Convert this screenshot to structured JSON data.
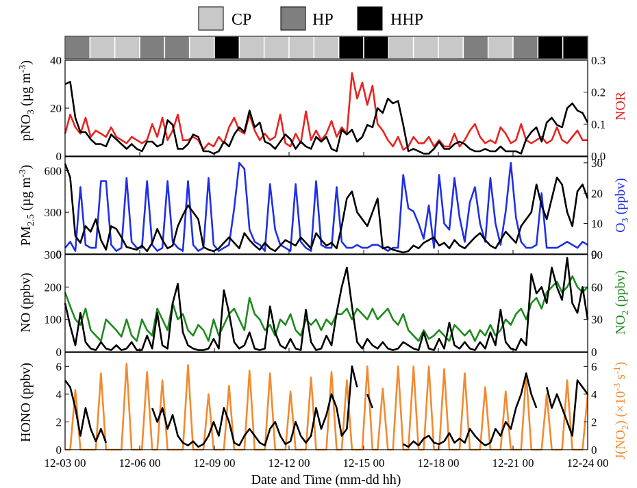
{
  "chart_data": {
    "type": "line",
    "x_axis": {
      "label": "Date and Time (mm-dd hh)",
      "ticks": [
        "12-03 00",
        "12-06 00",
        "12-09 00",
        "12-12 00",
        "12-15 00",
        "12-18 00",
        "12-21 00",
        "12-24 00"
      ],
      "range_days": [
        0,
        21
      ]
    },
    "legend": {
      "items": [
        {
          "label": "CP",
          "color": "#c8c8c8"
        },
        {
          "label": "HP",
          "color": "#7f7f7f"
        },
        {
          "label": "HHP",
          "color": "#000000"
        }
      ],
      "placement": "top"
    },
    "pollution_bar": [
      "HP",
      "CP",
      "CP",
      "HP",
      "HP",
      "CP",
      "HHP",
      "CP",
      "CP",
      "CP",
      "CP",
      "HHP",
      "HHP",
      "CP",
      "CP",
      "CP",
      "HP",
      "CP",
      "HP",
      "HHP",
      "HHP"
    ],
    "panels": [
      {
        "left_label": "pNO3 (µg m-3)",
        "left_ylim": [
          0,
          40
        ],
        "left_ticks": [
          "0",
          "20",
          "40"
        ],
        "right_label": "NOR",
        "right_ylim": [
          0,
          0.3
        ],
        "right_ticks": [
          "0.0",
          "0.1",
          "0.2",
          "0.3"
        ],
        "left_color": "#000000",
        "right_color": "#e8231f",
        "series": [
          {
            "axis": "left",
            "color": "#000000",
            "values": [
              30,
              31,
              16,
              10,
              10,
              7,
              5,
              5,
              4,
              9,
              7,
              5,
              3,
              5,
              3,
              2,
              6,
              6,
              4,
              5,
              15,
              13,
              3,
              3,
              5,
              9,
              8,
              2,
              2,
              1,
              2,
              6,
              4,
              9,
              12,
              10,
              19,
              12,
              14,
              6,
              5,
              3,
              6,
              9,
              7,
              3,
              6,
              4,
              3,
              8,
              6,
              8,
              3,
              2,
              11,
              9,
              11,
              6,
              8,
              13,
              12,
              20,
              18,
              24,
              22,
              23,
              13,
              2,
              3,
              2,
              1,
              1,
              3,
              6,
              3,
              3,
              5,
              6,
              5,
              3,
              2,
              2,
              3,
              2,
              2,
              4,
              2,
              2,
              2,
              1,
              7,
              10,
              12,
              6,
              14,
              16,
              13,
              12,
              20,
              22,
              19,
              18,
              14
            ]
          },
          {
            "axis": "right",
            "color": "#e8231f",
            "values": [
              0.07,
              0.13,
              0.09,
              0.07,
              0.12,
              0.06,
              0.08,
              0.07,
              0.06,
              0.09,
              0.06,
              0.05,
              0.04,
              0.06,
              0.05,
              0.04,
              0.05,
              0.1,
              0.06,
              0.12,
              0.05,
              0.08,
              0.13,
              0.05,
              0.05,
              0.06,
              0.05,
              0.02,
              0.04,
              0.03,
              0.06,
              0.04,
              0.09,
              0.12,
              0.08,
              0.07,
              0.13,
              0.08,
              0.05,
              0.07,
              0.05,
              0.06,
              0.13,
              0.04,
              0.03,
              0.07,
              0.04,
              0.14,
              0.05,
              0.08,
              0.05,
              0.07,
              0.11,
              0.06,
              0.09,
              0.07,
              0.26,
              0.18,
              0.23,
              0.16,
              0.22,
              0.1,
              0.08,
              0.05,
              0.03,
              0.06,
              0.02,
              0.03,
              0.06,
              0.04,
              0.04,
              0.06,
              0.03,
              0.05,
              0.03,
              0.03,
              0.07,
              0.03,
              0.05,
              0.08,
              0.1,
              0.06,
              0.04,
              0.05,
              0.04,
              0.09,
              0.07,
              0.04,
              0.05,
              0.1,
              0.05,
              0.04,
              0.05,
              0.06,
              0.04,
              0.05,
              0.09,
              0.05,
              0.04,
              0.06,
              0.08,
              0.05,
              0.05
            ]
          }
        ]
      },
      {
        "left_label": "PM2.5 (µg m-3)",
        "left_ylim": [
          0,
          700
        ],
        "left_ticks": [
          "0",
          "300",
          "600"
        ],
        "right_label": "O3 (ppbv)",
        "right_ylim": [
          0,
          32
        ],
        "right_ticks": [
          "0",
          "10",
          "20",
          "30"
        ],
        "left_color": "#000000",
        "right_color": "#1f2fe8",
        "series": [
          {
            "axis": "left",
            "color": "#000000",
            "values": [
              650,
              550,
              130,
              80,
              200,
              160,
              250,
              100,
              30,
              200,
              180,
              120,
              50,
              40,
              30,
              60,
              20,
              80,
              180,
              100,
              40,
              60,
              200,
              280,
              350,
              300,
              250,
              50,
              30,
              20,
              40,
              80,
              120,
              80,
              40,
              150,
              100,
              60,
              30,
              80,
              40,
              20,
              60,
              100,
              80,
              60,
              120,
              80,
              40,
              150,
              100,
              60,
              80,
              40,
              200,
              400,
              450,
              300,
              250,
              200,
              300,
              400,
              40,
              50,
              30,
              20,
              10,
              20,
              60,
              40,
              80,
              100,
              120,
              60,
              80,
              40,
              100,
              60,
              40,
              80,
              120,
              150,
              100,
              60,
              40,
              100,
              160,
              120,
              80,
              200,
              250,
              300,
              500,
              350,
              250,
              400,
              550,
              500,
              300,
              200,
              450,
              500,
              400
            ]
          },
          {
            "axis": "right",
            "color": "#1f2fe8",
            "values": [
              2,
              4,
              1,
              22,
              3,
              2,
              2,
              24,
              24,
              3,
              1,
              2,
              25,
              4,
              2,
              2,
              24,
              3,
              1,
              2,
              24,
              4,
              2,
              1,
              24,
              3,
              1,
              2,
              25,
              3,
              1,
              2,
              3,
              15,
              30,
              28,
              8,
              4,
              3,
              1,
              23,
              8,
              3,
              2,
              1,
              23,
              4,
              2,
              1,
              24,
              3,
              2,
              2,
              22,
              4,
              2,
              2,
              3,
              2,
              2,
              3,
              3,
              2,
              1,
              2,
              2,
              26,
              15,
              14,
              10,
              5,
              16,
              2,
              26,
              10,
              8,
              25,
              12,
              4,
              17,
              22,
              10,
              4,
              25,
              10,
              3,
              14,
              30,
              12,
              4,
              2,
              2,
              3,
              20,
              2,
              2,
              2,
              3,
              4,
              3,
              2,
              4,
              3
            ]
          }
        ]
      },
      {
        "left_label": "NO (ppbv)",
        "left_ylim": [
          0,
          300
        ],
        "left_ticks": [
          "0",
          "100",
          "200",
          "300"
        ],
        "right_label": "NO2 (ppbv)",
        "right_ylim": [
          0,
          90
        ],
        "right_ticks": [
          "0",
          "30",
          "60",
          "90"
        ],
        "left_color": "#000000",
        "right_color": "#1d8a1d",
        "series": [
          {
            "axis": "left",
            "color": "#000000",
            "values": [
              150,
              80,
              20,
              120,
              30,
              10,
              5,
              30,
              10,
              5,
              20,
              5,
              10,
              30,
              5,
              5,
              50,
              10,
              120,
              20,
              10,
              150,
              210,
              60,
              20,
              10,
              5,
              5,
              10,
              40,
              10,
              190,
              120,
              30,
              10,
              20,
              60,
              10,
              5,
              10,
              140,
              60,
              20,
              10,
              40,
              10,
              5,
              130,
              30,
              5,
              10,
              50,
              20,
              120,
              200,
              260,
              140,
              30,
              10,
              40,
              20,
              10,
              30,
              10,
              5,
              10,
              30,
              20,
              10,
              5,
              60,
              10,
              5,
              40,
              10,
              90,
              20,
              10,
              30,
              10,
              5,
              30,
              10,
              60,
              20,
              130,
              30,
              10,
              5,
              40,
              20,
              240,
              180,
              200,
              150,
              260,
              200,
              160,
              290,
              150,
              120,
              200,
              100
            ]
          },
          {
            "axis": "right",
            "color": "#1d8a1d",
            "values": [
              55,
              42,
              30,
              25,
              40,
              20,
              15,
              10,
              30,
              25,
              20,
              14,
              30,
              15,
              10,
              30,
              20,
              15,
              40,
              30,
              20,
              45,
              30,
              35,
              20,
              15,
              25,
              20,
              10,
              30,
              15,
              25,
              35,
              40,
              30,
              20,
              50,
              35,
              30,
              20,
              25,
              15,
              30,
              25,
              35,
              20,
              15,
              30,
              25,
              30,
              20,
              30,
              25,
              35,
              35,
              40,
              30,
              40,
              35,
              30,
              40,
              30,
              35,
              40,
              30,
              25,
              35,
              20,
              15,
              10,
              20,
              12,
              15,
              20,
              15,
              10,
              25,
              20,
              15,
              20,
              10,
              20,
              15,
              25,
              15,
              20,
              30,
              25,
              35,
              40,
              30,
              45,
              50,
              40,
              55,
              60,
              65,
              55,
              60,
              70,
              60,
              55,
              60
            ]
          }
        ]
      },
      {
        "left_label": "HONO (ppbv)",
        "left_ylim": [
          0,
          7
        ],
        "left_ticks": [
          "0",
          "2",
          "4",
          "6"
        ],
        "right_label": "J(NO2) (×10-3 s-1)",
        "right_ylim": [
          0,
          7
        ],
        "right_ticks": [
          "0",
          "2",
          "4",
          "6"
        ],
        "left_color": "#000000",
        "right_color": "#f28a30",
        "series": [
          {
            "axis": "left",
            "color": "#000000",
            "values": [
              5,
              4.5,
              3,
              1,
              3,
              1.5,
              0.6,
              1.5,
              0.5,
              null,
              null,
              null,
              null,
              null,
              null,
              null,
              null,
              3,
              2,
              3,
              1.5,
              2.5,
              1,
              0.5,
              0.3,
              0.6,
              0.2,
              0.4,
              1,
              2,
              1,
              3,
              2,
              0.5,
              0.3,
              1,
              1.5,
              1,
              0.5,
              0.3,
              1.5,
              2,
              1,
              0.4,
              0.6,
              2,
              1,
              0.5,
              1,
              3,
              1.5,
              2.5,
              4,
              3,
              1,
              1.5,
              6,
              4.5,
              null,
              4,
              3,
              null,
              null,
              null,
              null,
              null,
              0.4,
              0.2,
              0.6,
              0.3,
              0.8,
              1,
              0.5,
              0.4,
              0.6,
              1.2,
              0.5,
              0.8,
              0.5,
              1.5,
              1,
              0.6,
              0.3,
              0.5,
              1.5,
              1,
              2,
              1.5,
              3,
              4,
              5.5,
              4,
              3,
              null,
              4.5,
              3,
              4,
              3,
              2,
              1,
              5,
              4.5,
              4
            ]
          },
          {
            "axis": "right",
            "color": "#f28a30",
            "values": [
              0,
              0,
              4.3,
              0,
              0,
              0,
              0,
              5.5,
              0,
              0,
              0,
              0,
              6.2,
              0,
              0,
              0,
              5.6,
              0,
              0,
              5,
              0,
              0,
              0,
              0,
              6.1,
              0,
              0,
              0,
              4,
              0,
              0,
              0,
              4.6,
              0,
              0,
              0,
              5.7,
              0,
              0,
              0,
              5.5,
              0,
              0,
              0,
              4.2,
              0,
              0,
              0,
              5.2,
              0,
              0,
              0,
              5.6,
              0,
              0,
              5,
              0,
              0,
              0,
              6,
              0,
              0,
              4.4,
              0,
              0,
              6,
              0,
              0,
              6,
              0,
              0,
              6,
              0,
              0,
              5.8,
              0,
              0,
              0,
              5.5,
              0,
              0,
              0,
              4.5,
              0,
              0,
              0,
              4.2,
              0,
              0,
              0,
              5.5,
              0,
              0,
              0,
              4,
              0,
              0,
              0,
              5,
              0,
              0,
              0,
              4
            ]
          }
        ]
      }
    ]
  }
}
